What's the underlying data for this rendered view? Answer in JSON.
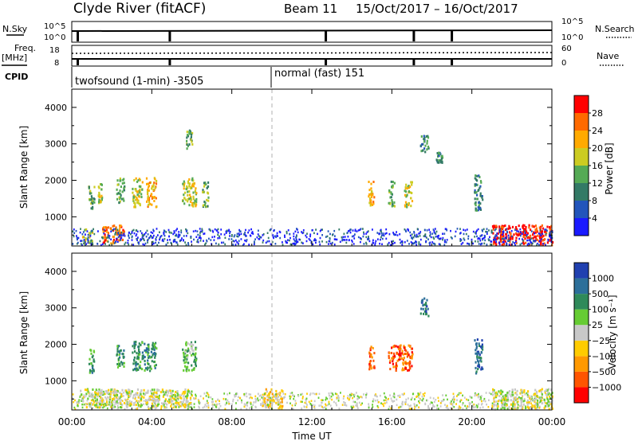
{
  "header": {
    "radar": "Clyde River (fitACF)",
    "beam": "Beam 11",
    "date_range": "15/Oct/2017 – 16/Oct/2017"
  },
  "params": {
    "nsky_label": "N.Sky",
    "nsky_top": "10^5",
    "nsky_bottom": "10^0",
    "nsearch_label": "N.Search",
    "nsearch_top": "10^5",
    "nsearch_bottom": "10^0",
    "freq_label_1": "Freq.",
    "freq_label_2": "[MHz]",
    "freq_top": "18",
    "freq_bottom": "8",
    "nave_label": "Nave",
    "nave_top": "60",
    "nave_bottom": "0",
    "cpid_label": "CPID",
    "cpid_mode_1": "twofsound (1-min) -3505",
    "cpid_mode_2": "normal (fast) 151"
  },
  "chart_data": [
    {
      "type": "heatmap",
      "name_text": "power",
      "ylabel": "Slant Range [km]",
      "ylim": [
        200,
        4500
      ],
      "yticks": [
        1000,
        2000,
        3000,
        4000
      ],
      "xlim": [
        0,
        24
      ],
      "xtick_values": [
        0,
        4,
        8,
        12,
        16,
        20,
        24
      ],
      "colorbar": {
        "label": "Power [dB]",
        "ticks": [
          "4",
          "8",
          "12",
          "16",
          "20",
          "24",
          "28"
        ],
        "range": [
          0,
          30
        ],
        "colors": [
          "#1a1aff",
          "#2255bb",
          "#337a66",
          "#55aa55",
          "#cccc22",
          "#ffaa00",
          "#ff6a00",
          "#ff0000"
        ]
      },
      "echo_regions": [
        {
          "t": [
            0.8,
            1.1
          ],
          "r": [
            1200,
            1900
          ],
          "level": 3
        },
        {
          "t": [
            1.3,
            1.5
          ],
          "r": [
            1400,
            2000
          ],
          "level": 4
        },
        {
          "t": [
            2.2,
            2.6
          ],
          "r": [
            1400,
            2100
          ],
          "level": 3
        },
        {
          "t": [
            3.0,
            3.5
          ],
          "r": [
            1300,
            2100
          ],
          "level": 4
        },
        {
          "t": [
            3.7,
            4.2
          ],
          "r": [
            1300,
            2100
          ],
          "level": 5
        },
        {
          "t": [
            5.5,
            6.2
          ],
          "r": [
            1300,
            2100
          ],
          "level": 4
        },
        {
          "t": [
            5.7,
            6.0
          ],
          "r": [
            2900,
            3400
          ],
          "level": 3
        },
        {
          "t": [
            6.5,
            6.8
          ],
          "r": [
            1300,
            2000
          ],
          "level": 3
        },
        {
          "t": [
            1.5,
            2.6
          ],
          "r": [
            300,
            800
          ],
          "level": 6
        },
        {
          "t": [
            0.5,
            1.0
          ],
          "r": [
            300,
            700
          ],
          "level": 4
        },
        {
          "t": [
            14.8,
            15.1
          ],
          "r": [
            1300,
            2000
          ],
          "level": 5
        },
        {
          "t": [
            15.8,
            16.1
          ],
          "r": [
            1300,
            2000
          ],
          "level": 3
        },
        {
          "t": [
            16.6,
            17.0
          ],
          "r": [
            1300,
            2000
          ],
          "level": 4
        },
        {
          "t": [
            17.4,
            17.8
          ],
          "r": [
            2800,
            3300
          ],
          "level": 2
        },
        {
          "t": [
            18.2,
            18.5
          ],
          "r": [
            2500,
            2800
          ],
          "level": 2
        },
        {
          "t": [
            20.1,
            20.5
          ],
          "r": [
            1200,
            2200
          ],
          "level": 2
        },
        {
          "t": [
            21.0,
            24.0
          ],
          "r": [
            250,
            800
          ],
          "level": 7
        }
      ]
    },
    {
      "type": "heatmap",
      "name_text": "velocity",
      "ylabel": "Slant Range [km]",
      "ylim": [
        200,
        4500
      ],
      "yticks": [
        1000,
        2000,
        3000,
        4000
      ],
      "xlim": [
        0,
        24
      ],
      "xtick_values": [
        0,
        4,
        8,
        12,
        16,
        20,
        24
      ],
      "xtick_labels": [
        "00:00",
        "04:00",
        "08:00",
        "12:00",
        "16:00",
        "20:00",
        "00:00"
      ],
      "xlabel": "Time UT",
      "colorbar": {
        "label": "Velocity [m s⁻¹]",
        "ticks": [
          "1000",
          "500",
          "100",
          "25",
          "−25",
          "−100",
          "−500",
          "−1000"
        ],
        "colors": [
          "#2040b0",
          "#2c6f9a",
          "#2f8a5a",
          "#66cc33",
          "#c8c8c8",
          "#ffcc00",
          "#ff9900",
          "#ff5500",
          "#ff0000"
        ]
      },
      "echo_regions": [
        {
          "t": [
            0.8,
            1.1
          ],
          "r": [
            1200,
            1900
          ],
          "level": 2
        },
        {
          "t": [
            2.2,
            2.6
          ],
          "r": [
            1400,
            2100
          ],
          "level": 2
        },
        {
          "t": [
            3.0,
            4.2
          ],
          "r": [
            1300,
            2100
          ],
          "level": 2
        },
        {
          "t": [
            5.5,
            6.2
          ],
          "r": [
            1300,
            2100
          ],
          "level": 3
        },
        {
          "t": [
            0.3,
            6.0
          ],
          "r": [
            300,
            800
          ],
          "level": 4
        },
        {
          "t": [
            9.5,
            10.5
          ],
          "r": [
            300,
            800
          ],
          "level": 5
        },
        {
          "t": [
            14.8,
            15.1
          ],
          "r": [
            1300,
            2000
          ],
          "level": 7
        },
        {
          "t": [
            15.8,
            17.0
          ],
          "r": [
            1300,
            2000
          ],
          "level": 7
        },
        {
          "t": [
            17.4,
            17.8
          ],
          "r": [
            2800,
            3300
          ],
          "level": 1
        },
        {
          "t": [
            20.1,
            20.5
          ],
          "r": [
            1200,
            2200
          ],
          "level": 1
        },
        {
          "t": [
            21.0,
            24.0
          ],
          "r": [
            250,
            800
          ],
          "level": 4
        }
      ]
    }
  ],
  "colors": {
    "dash": "#b0b0b0",
    "axis": "#000000"
  }
}
